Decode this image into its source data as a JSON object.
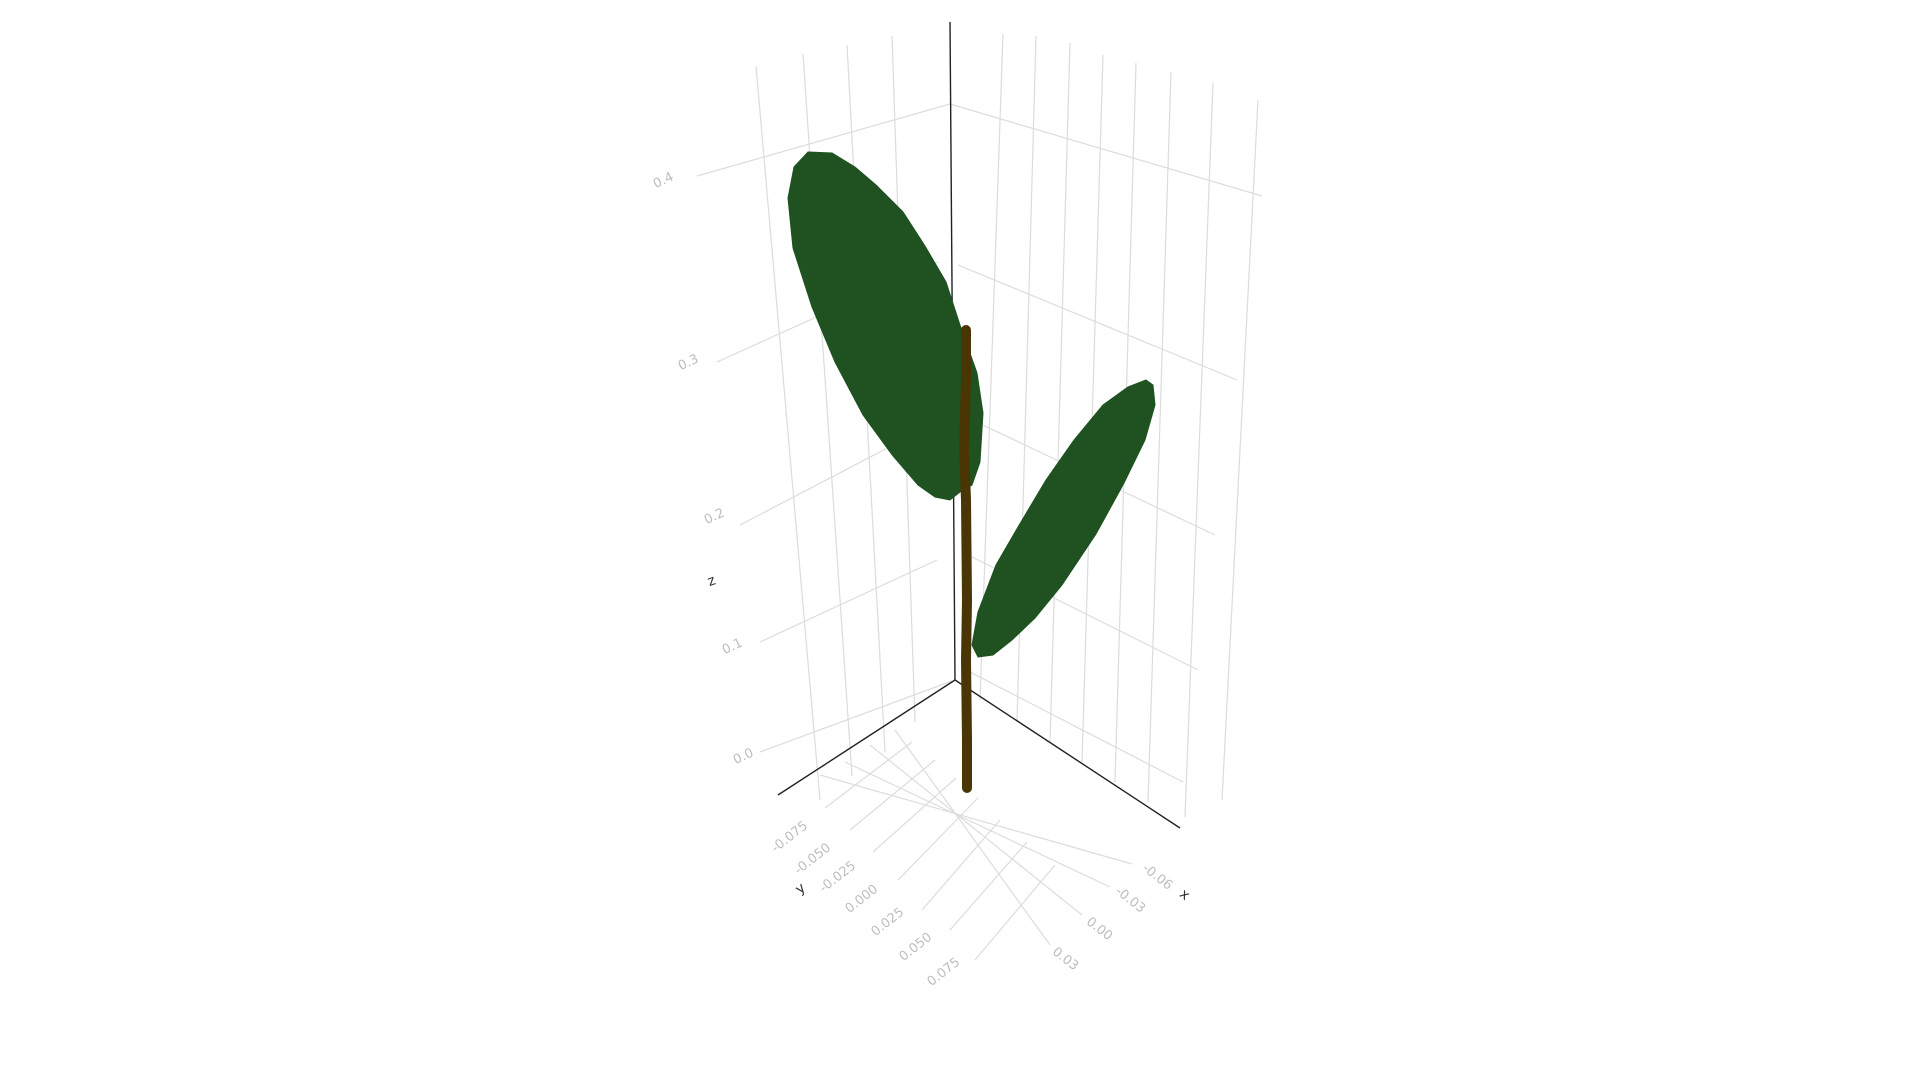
{
  "chart_data": {
    "type": "3d-surface",
    "title": "",
    "axes": {
      "x": {
        "title": "x",
        "ticks": [
          "-0.06",
          "-0.03",
          "0.00",
          "0.03"
        ]
      },
      "y": {
        "title": "y",
        "ticks": [
          "-0.075",
          "-0.050",
          "-0.025",
          "0.000",
          "0.025",
          "0.050",
          "0.075"
        ]
      },
      "z": {
        "title": "z",
        "ticks": [
          "0.0",
          "0.1",
          "0.2",
          "0.3",
          "0.4"
        ]
      }
    },
    "grid": true,
    "legend": "none",
    "objects": [
      {
        "kind": "leaf",
        "name": "upper-leaf",
        "color": "#1f5220",
        "base_z": 0.24,
        "tip_z": 0.41
      },
      {
        "kind": "leaf",
        "name": "lower-leaf",
        "color": "#1f5220",
        "base_z": 0.06,
        "tip_z": 0.22
      },
      {
        "kind": "stem",
        "name": "stem",
        "color": "#4a3605",
        "z_range": [
          0.0,
          0.33
        ]
      }
    ]
  }
}
